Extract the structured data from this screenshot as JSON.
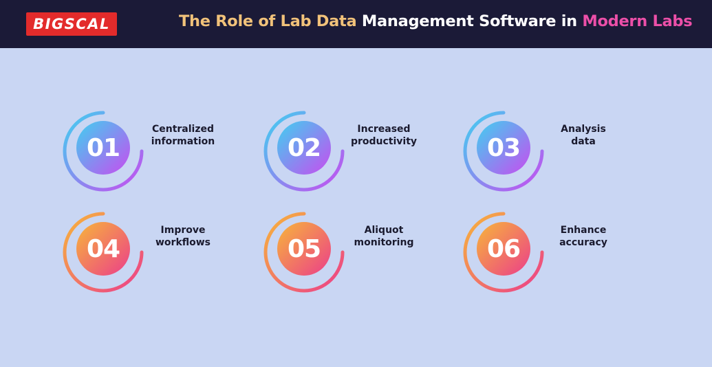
{
  "brand": {
    "logo_text": "BIGSCAL"
  },
  "header": {
    "title_part1": "The Role of Lab Data ",
    "title_part2": "Management Software in ",
    "title_part3": "Modern Labs"
  },
  "items": [
    {
      "number": "01",
      "line1": "Centralized",
      "line2": "information"
    },
    {
      "number": "02",
      "line1": "Increased",
      "line2": "productivity"
    },
    {
      "number": "03",
      "line1": "Analysis",
      "line2": "data"
    },
    {
      "number": "04",
      "line1": "Improve",
      "line2": "workflows"
    },
    {
      "number": "05",
      "line1": "Aliquot",
      "line2": "monitoring"
    },
    {
      "number": "06",
      "line1": "Enhance",
      "line2": "accuracy"
    }
  ],
  "colors": {
    "header_bg": "#1b1a37",
    "page_bg": "#c9d6f3",
    "cool_gradient": [
      "#3fd1f0",
      "#c84cf0"
    ],
    "warm_gradient": [
      "#f7b63a",
      "#ec3e8a"
    ]
  }
}
